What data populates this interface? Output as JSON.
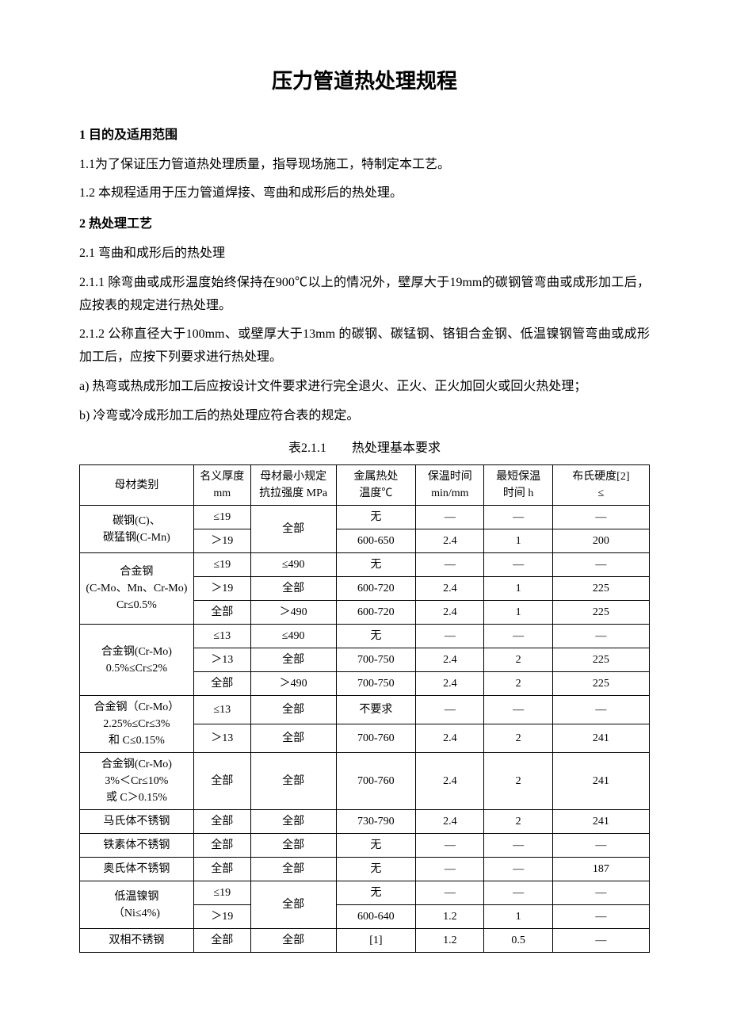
{
  "title": "压力管道热处理规程",
  "s1_heading": "1 目的及适用范围",
  "s1_1": "1.1为了保证压力管道热处理质量，指导现场施工，特制定本工艺。",
  "s1_2": "1.2 本规程适用于压力管道焊接、弯曲和成形后的热处理。",
  "s2_heading": "2 热处理工艺",
  "s2_1": "2.1 弯曲和成形后的热处理",
  "s2_1_1": "2.1.1 除弯曲或成形温度始终保持在900℃以上的情况外，壁厚大于19mm的碳钢管弯曲或成形加工后，应按表的规定进行热处理。",
  "s2_1_2": "2.1.2 公称直径大于100mm、或壁厚大于13mm 的碳钢、碳锰钢、铬钼合金钢、低温镍钢管弯曲或成形加工后，应按下列要求进行热处理。",
  "s2_a": "a) 热弯或热成形加工后应按设计文件要求进行完全退火、正火、正火加回火或回火热处理；",
  "s2_b": "b) 冷弯或冷成形加工后的热处理应符合表的规定。",
  "table_caption": "表2.1.1　　热处理基本要求",
  "headers": {
    "cat": "母材类别",
    "thk_l1": "名义厚度",
    "thk_l2": "mm",
    "ten_l1": "母材最小规定",
    "ten_l2": "抗拉强度 MPa",
    "tmp_l1": "金属热处",
    "tmp_l2": "温度℃",
    "tim_l1": "保温时间",
    "tim_l2": "min/mm",
    "min_l1": "最短保温",
    "min_l2": "时间 h",
    "hrd_l1": "布氏硬度[2]",
    "hrd_l2": "≤"
  },
  "rows": {
    "r1_cat_l1": "碳钢(C)、",
    "r1_cat_l2": "碳猛钢(C-Mn)",
    "r1a_thk": "≤19",
    "r1_ten": "全部",
    "r1a_tmp": "无",
    "r1a_tim": "—",
    "r1a_min": "—",
    "r1a_hrd": "—",
    "r1b_thk": "＞19",
    "r1b_tmp": "600-650",
    "r1b_tim": "2.4",
    "r1b_min": "1",
    "r1b_hrd": "200",
    "r2_cat_l1": "合金钢",
    "r2_cat_l2": "(C-Mo、Mn、Cr-Mo)",
    "r2_cat_l3": "Cr≤0.5%",
    "r2a_thk": "≤19",
    "r2a_ten": "≤490",
    "r2a_tmp": "无",
    "r2a_tim": "—",
    "r2a_min": "—",
    "r2a_hrd": "—",
    "r2b_thk": "＞19",
    "r2b_ten": "全部",
    "r2b_tmp": "600-720",
    "r2b_tim": "2.4",
    "r2b_min": "1",
    "r2b_hrd": "225",
    "r2c_thk": "全部",
    "r2c_ten": "＞490",
    "r2c_tmp": "600-720",
    "r2c_tim": "2.4",
    "r2c_min": "1",
    "r2c_hrd": "225",
    "r3_cat_l1": "合金钢(Cr-Mo)",
    "r3_cat_l2": "0.5%≤Cr≤2%",
    "r3a_thk": "≤13",
    "r3a_ten": "≤490",
    "r3a_tmp": "无",
    "r3a_tim": "—",
    "r3a_min": "—",
    "r3a_hrd": "—",
    "r3b_thk": "＞13",
    "r3b_ten": "全部",
    "r3b_tmp": "700-750",
    "r3b_tim": "2.4",
    "r3b_min": "2",
    "r3b_hrd": "225",
    "r3c_thk": "全部",
    "r3c_ten": "＞490",
    "r3c_tmp": "700-750",
    "r3c_tim": "2.4",
    "r3c_min": "2",
    "r3c_hrd": "225",
    "r4_cat_l1": "合金钢（Cr-Mo）",
    "r4_cat_l2": "2.25%≤Cr≤3%",
    "r4_cat_l3": "和 C≤0.15%",
    "r4a_thk": "≤13",
    "r4a_ten": "全部",
    "r4a_tmp": "不要求",
    "r4a_tim": "—",
    "r4a_min": "—",
    "r4a_hrd": "—",
    "r4b_thk": "＞13",
    "r4b_ten": "全部",
    "r4b_tmp": "700-760",
    "r4b_tim": "2.4",
    "r4b_min": "2",
    "r4b_hrd": "241",
    "r5_cat_l1": "合金钢(Cr-Mo)",
    "r5_cat_l2": "3%＜Cr≤10%",
    "r5_cat_l3": "或 C＞0.15%",
    "r5_thk": "全部",
    "r5_ten": "全部",
    "r5_tmp": "700-760",
    "r5_tim": "2.4",
    "r5_min": "2",
    "r5_hrd": "241",
    "r6_cat": "马氏体不锈钢",
    "r6_thk": "全部",
    "r6_ten": "全部",
    "r6_tmp": "730-790",
    "r6_tim": "2.4",
    "r6_min": "2",
    "r6_hrd": "241",
    "r7_cat": "铁素体不锈钢",
    "r7_thk": "全部",
    "r7_ten": "全部",
    "r7_tmp": "无",
    "r7_tim": "—",
    "r7_min": "—",
    "r7_hrd": "—",
    "r8_cat": "奥氏体不锈钢",
    "r8_thk": "全部",
    "r8_ten": "全部",
    "r8_tmp": "无",
    "r8_tim": "—",
    "r8_min": "—",
    "r8_hrd": "187",
    "r9_cat_l1": "低温镍钢",
    "r9_cat_l2": "（Ni≤4%)",
    "r9a_thk": "≤19",
    "r9_ten": "全部",
    "r9a_tmp": "无",
    "r9a_tim": "—",
    "r9a_min": "—",
    "r9a_hrd": "—",
    "r9b_thk": "＞19",
    "r9b_tmp": "600-640",
    "r9b_tim": "1.2",
    "r9b_min": "1",
    "r9b_hrd": "—",
    "r10_cat": "双相不锈钢",
    "r10_thk": "全部",
    "r10_ten": "全部",
    "r10_tmp": "[1]",
    "r10_tim": "1.2",
    "r10_min": "0.5",
    "r10_hrd": "—"
  }
}
